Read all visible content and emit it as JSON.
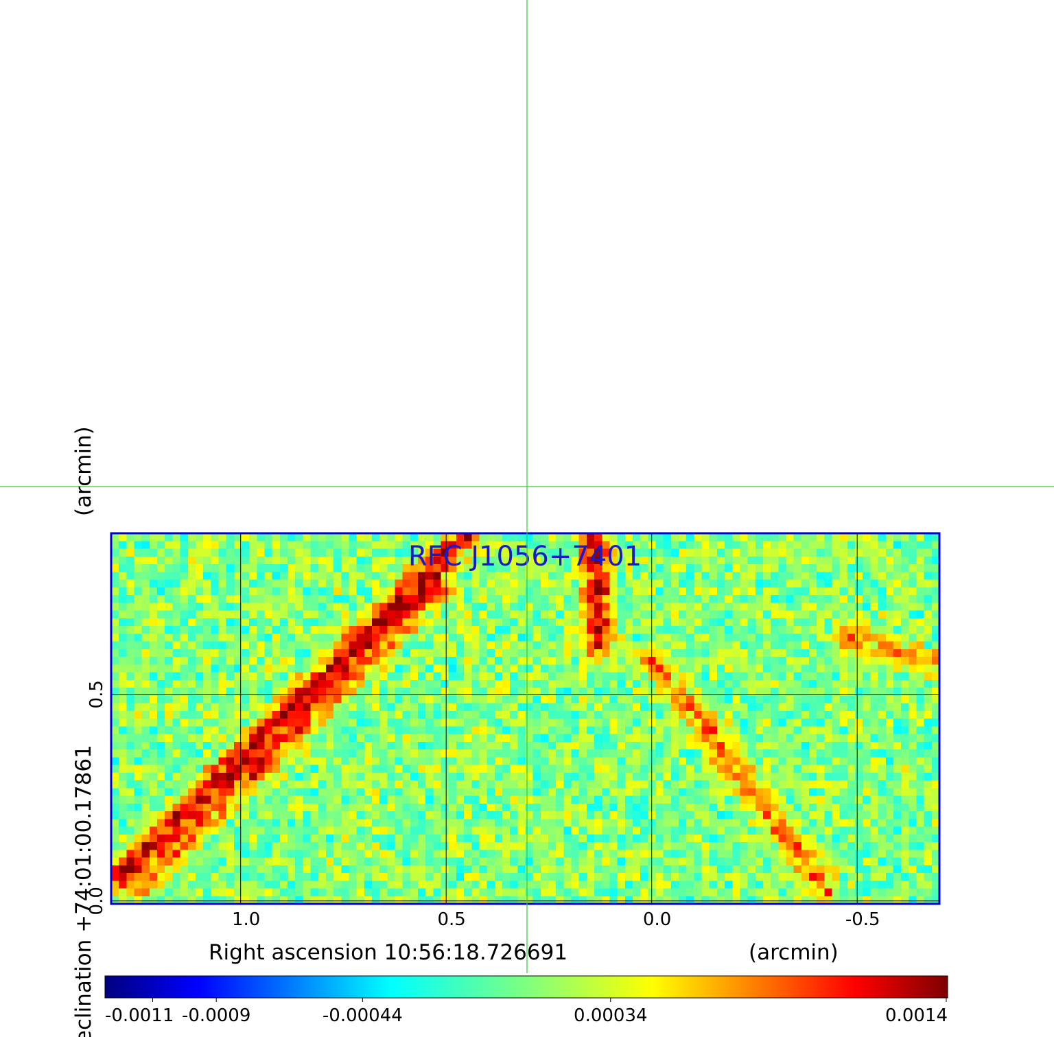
{
  "chart_data": {
    "type": "heatmap",
    "title": "RFC J1056+7401",
    "xlabel": "Right ascension  10:56:18.726691",
    "xlabel_unit": "(arcmin)",
    "ylabel": "Declination  +74:01:00.17861",
    "ylabel_unit": "(arcmin)",
    "x_ticks": [
      {
        "value": 1.0,
        "label": "1.0"
      },
      {
        "value": 0.5,
        "label": "0.5"
      },
      {
        "value": 0.0,
        "label": "0.0"
      },
      {
        "value": -0.5,
        "label": "-0.5"
      }
    ],
    "y_ticks": [
      {
        "value": 0.0,
        "label": "0.0"
      },
      {
        "value": 0.5,
        "label": "0.5"
      }
    ],
    "xlim": [
      1.315,
      -0.7
    ],
    "ylim": [
      -0.007,
      0.89
    ],
    "image_extent": {
      "x": [
        1.32,
        -0.7
      ],
      "y": [
        0.0,
        0.89
      ]
    },
    "grid": true,
    "colormap": "jet",
    "colorbar": {
      "range": [
        -0.00125,
        0.0014
      ],
      "ticks": [
        {
          "value": -0.0011,
          "label": "-0.0011"
        },
        {
          "value": -0.0009,
          "label": "-0.0009"
        },
        {
          "value": -0.00044,
          "label": "-0.00044"
        },
        {
          "value": 0.00034,
          "label": "0.00034"
        },
        {
          "value": 0.0014,
          "label": "0.0014"
        }
      ]
    },
    "crosshair": {
      "ra_offset_arcmin": 0.305,
      "dec_offset_arcmin": 1.01
    },
    "features": [
      {
        "name": "diagonal-streak-a",
        "from": [
          1.32,
          0.05
        ],
        "to": [
          0.45,
          0.89
        ],
        "amplitude": 0.0011
      },
      {
        "name": "diagonal-streak-b",
        "from": [
          1.25,
          0.04
        ],
        "to": [
          0.52,
          0.76
        ],
        "amplitude": 0.0007
      },
      {
        "name": "north-blob",
        "from": [
          0.14,
          0.89
        ],
        "to": [
          0.13,
          0.63
        ],
        "amplitude": 0.0012
      },
      {
        "name": "east-streak",
        "from": [
          0.0,
          0.59
        ],
        "to": [
          -0.42,
          0.04
        ],
        "amplitude": 0.0007
      },
      {
        "name": "east-diagonal",
        "from": [
          -0.48,
          0.64
        ],
        "to": [
          -0.7,
          0.57
        ],
        "amplitude": 0.0006
      }
    ]
  },
  "colors": {
    "frame": "#0000cc",
    "grid": "#000000",
    "crosshair": "#33cc33",
    "title": "#1a1acc",
    "text": "#000000"
  }
}
